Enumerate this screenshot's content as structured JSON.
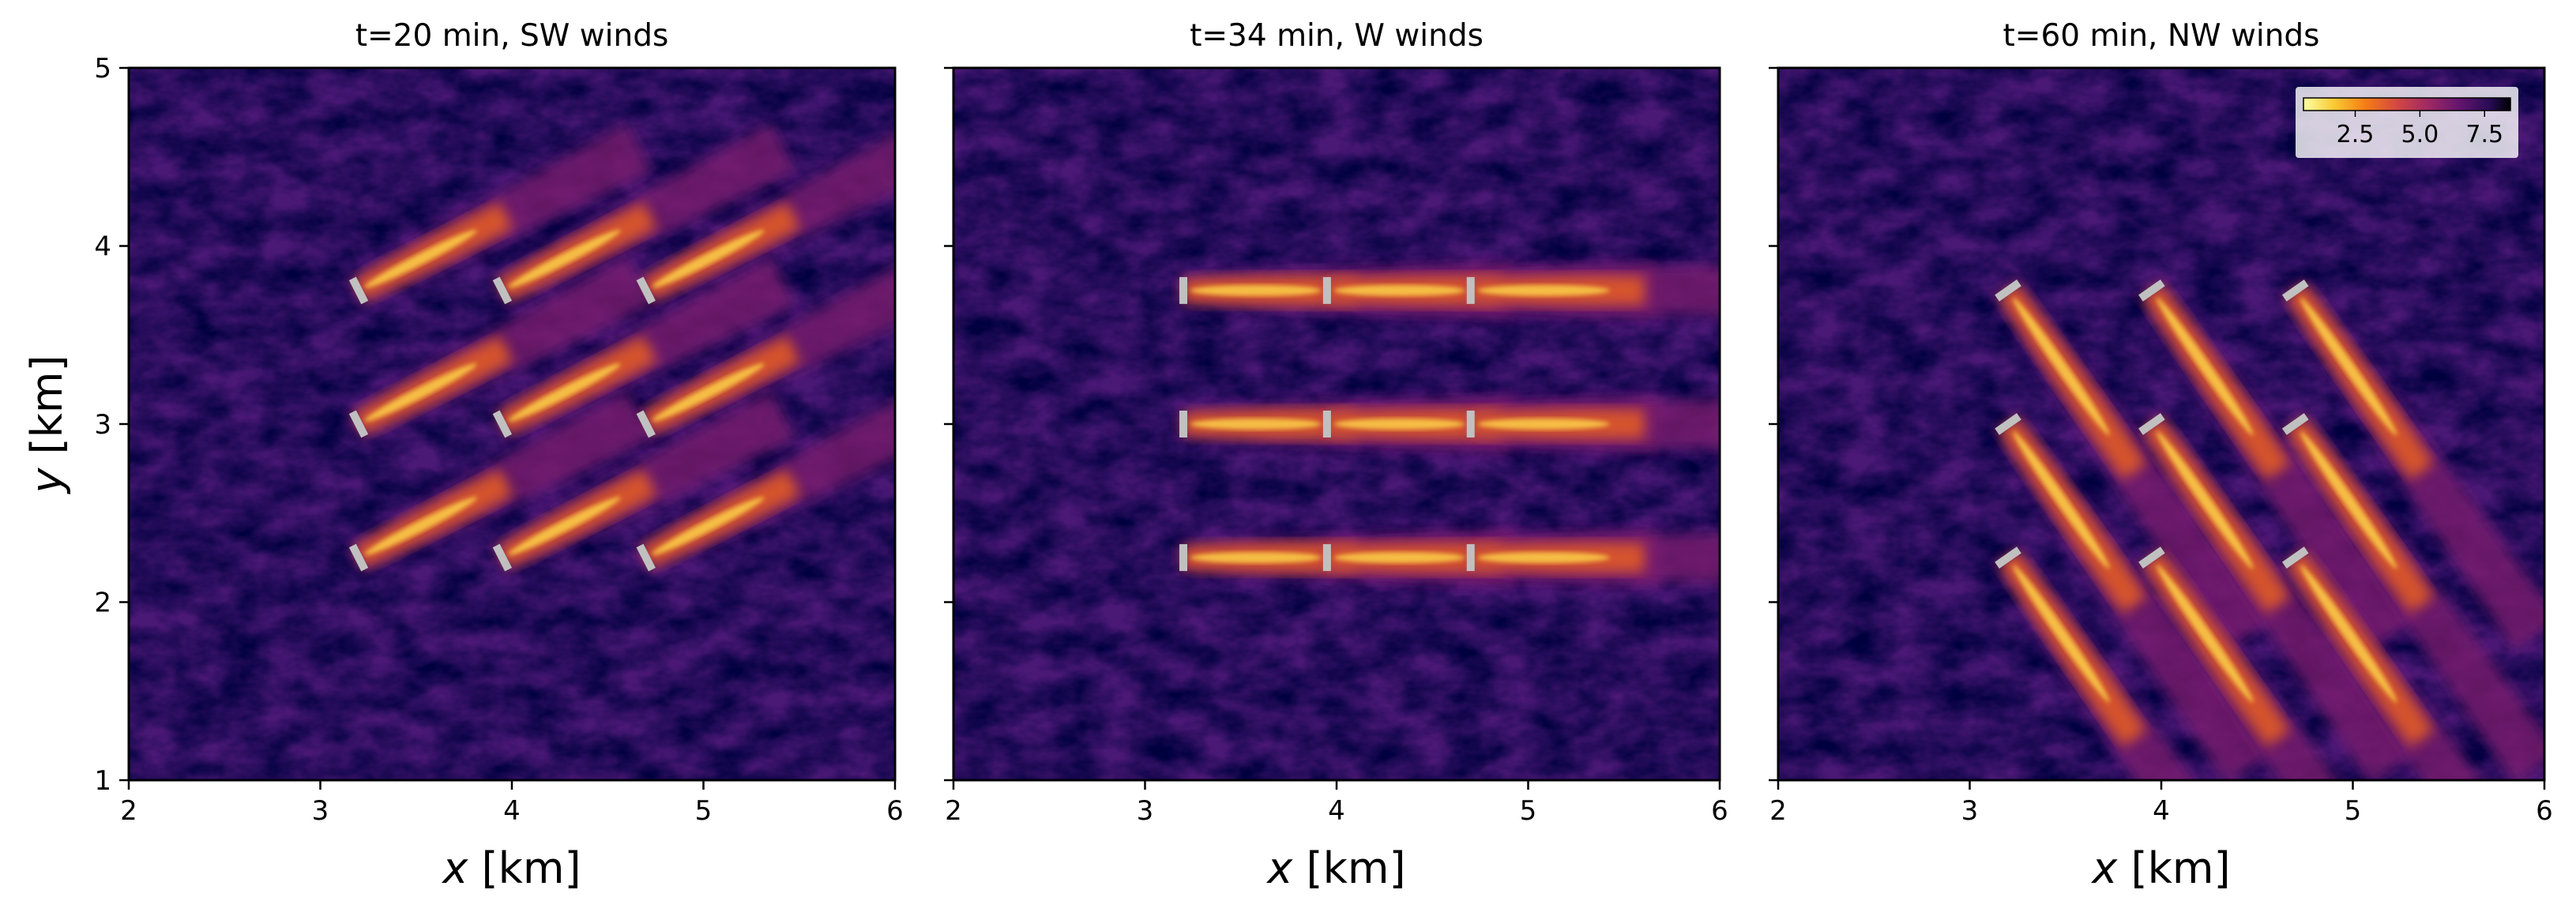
{
  "chart_data": [
    {
      "type": "heatmap",
      "title": "t=20 min, SW winds",
      "xlabel_var": "x",
      "xlabel_unit": "[km]",
      "ylabel_var": "y",
      "ylabel_unit": "[km]",
      "xlim": [
        2,
        6
      ],
      "ylim": [
        1,
        5
      ],
      "xticks": [
        2,
        3,
        4,
        5,
        6
      ],
      "yticks": [
        1,
        2,
        3,
        4,
        5
      ],
      "wake_direction_deg": 27,
      "turbines": [
        {
          "x": 3.2,
          "y": 3.75
        },
        {
          "x": 3.95,
          "y": 3.75
        },
        {
          "x": 4.7,
          "y": 3.75
        },
        {
          "x": 3.2,
          "y": 3.0
        },
        {
          "x": 3.95,
          "y": 3.0
        },
        {
          "x": 4.7,
          "y": 3.0
        },
        {
          "x": 3.2,
          "y": 2.25
        },
        {
          "x": 3.95,
          "y": 2.25
        },
        {
          "x": 4.7,
          "y": 2.25
        }
      ]
    },
    {
      "type": "heatmap",
      "title": "t=34 min, W winds",
      "xlabel_var": "x",
      "xlabel_unit": "[km]",
      "xlim": [
        2,
        6
      ],
      "ylim": [
        1,
        5
      ],
      "xticks": [
        2,
        3,
        4,
        5,
        6
      ],
      "yticks": [
        1,
        2,
        3,
        4,
        5
      ],
      "wake_direction_deg": 0,
      "turbines": [
        {
          "x": 3.2,
          "y": 3.75
        },
        {
          "x": 3.95,
          "y": 3.75
        },
        {
          "x": 4.7,
          "y": 3.75
        },
        {
          "x": 3.2,
          "y": 3.0
        },
        {
          "x": 3.95,
          "y": 3.0
        },
        {
          "x": 4.7,
          "y": 3.0
        },
        {
          "x": 3.2,
          "y": 2.25
        },
        {
          "x": 3.95,
          "y": 2.25
        },
        {
          "x": 4.7,
          "y": 2.25
        }
      ]
    },
    {
      "type": "heatmap",
      "title": "t=60 min, NW winds",
      "xlabel_var": "x",
      "xlabel_unit": "[km]",
      "xlim": [
        2,
        6
      ],
      "ylim": [
        1,
        5
      ],
      "xticks": [
        2,
        3,
        4,
        5,
        6
      ],
      "yticks": [
        1,
        2,
        3,
        4,
        5
      ],
      "wake_direction_deg": -55,
      "turbines": [
        {
          "x": 3.2,
          "y": 3.75
        },
        {
          "x": 3.95,
          "y": 3.75
        },
        {
          "x": 4.7,
          "y": 3.75
        },
        {
          "x": 3.2,
          "y": 3.0
        },
        {
          "x": 3.95,
          "y": 3.0
        },
        {
          "x": 4.7,
          "y": 3.0
        },
        {
          "x": 3.2,
          "y": 2.25
        },
        {
          "x": 3.95,
          "y": 2.25
        },
        {
          "x": 4.7,
          "y": 2.25
        }
      ],
      "colorbar": {
        "range": [
          0.5,
          8.5
        ],
        "ticks": [
          "2.5",
          "5.0",
          "7.5"
        ],
        "placement": "top-right",
        "colormap": "inferno_r"
      }
    }
  ],
  "colors": {
    "background": "#4a1875",
    "wake_low": "#7a1d6d",
    "wake_mid": "#e05a28",
    "wake_high": "#fcd04a",
    "turbine": "#c0c0c0"
  }
}
